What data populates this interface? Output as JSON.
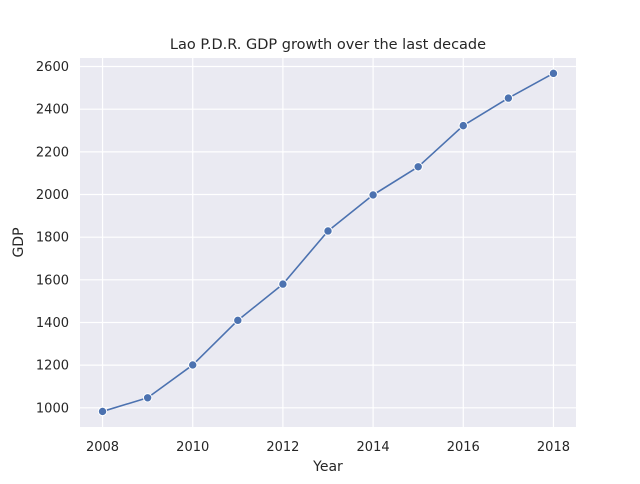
{
  "chart_data": {
    "type": "line",
    "title": "Lao P.D.R. GDP growth over the last decade",
    "xlabel": "Year",
    "ylabel": "GDP",
    "x": [
      2008,
      2009,
      2010,
      2011,
      2012,
      2013,
      2014,
      2015,
      2016,
      2017,
      2018
    ],
    "series": [
      {
        "values": [
          983,
          1047,
          1201,
          1410,
          1580,
          1829,
          1998,
          2130,
          2323,
          2452,
          2568
        ]
      }
    ],
    "xlim": [
      2007.5,
      2018.5
    ],
    "ylim": [
      910,
      2640
    ],
    "xticks": [
      2008,
      2010,
      2012,
      2014,
      2016,
      2018
    ],
    "yticks": [
      1000,
      1200,
      1400,
      1600,
      1800,
      2000,
      2200,
      2400,
      2600
    ],
    "grid": true,
    "legend": "none",
    "colors": {
      "background": "#eaeaf2",
      "grid": "#ffffff",
      "line": "#4c72b0",
      "marker_edge": "#ffffff"
    }
  }
}
